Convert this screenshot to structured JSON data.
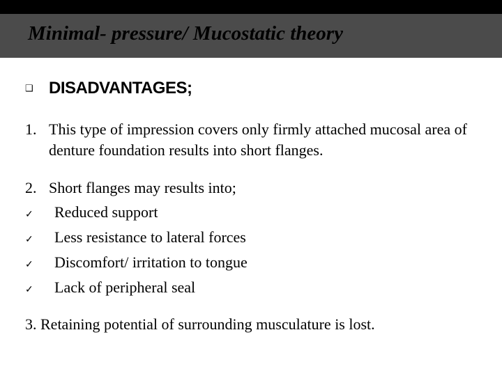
{
  "slide": {
    "title": "Minimal- pressure/ Mucostatic theory",
    "heading_bullet": "❑",
    "heading": "DISADVANTAGES;",
    "point1_num": "1.",
    "point1_text": "This type of impression covers only firmly attached mucosal area of denture foundation results into short flanges.",
    "point2_num": "2.",
    "point2_text": "Short flanges may results into;",
    "sub_bullet": "✓",
    "sub_a": "Reduced support",
    "sub_b": "Less resistance to lateral forces",
    "sub_c": "Discomfort/ irritation to tongue",
    "sub_d": "Lack of peripheral seal",
    "point3": "3.  Retaining potential of surrounding musculature is lost."
  },
  "colors": {
    "page_bg": "#000000",
    "title_band_bg": "#4b4b4b",
    "content_bg": "#ffffff",
    "text": "#000000"
  }
}
